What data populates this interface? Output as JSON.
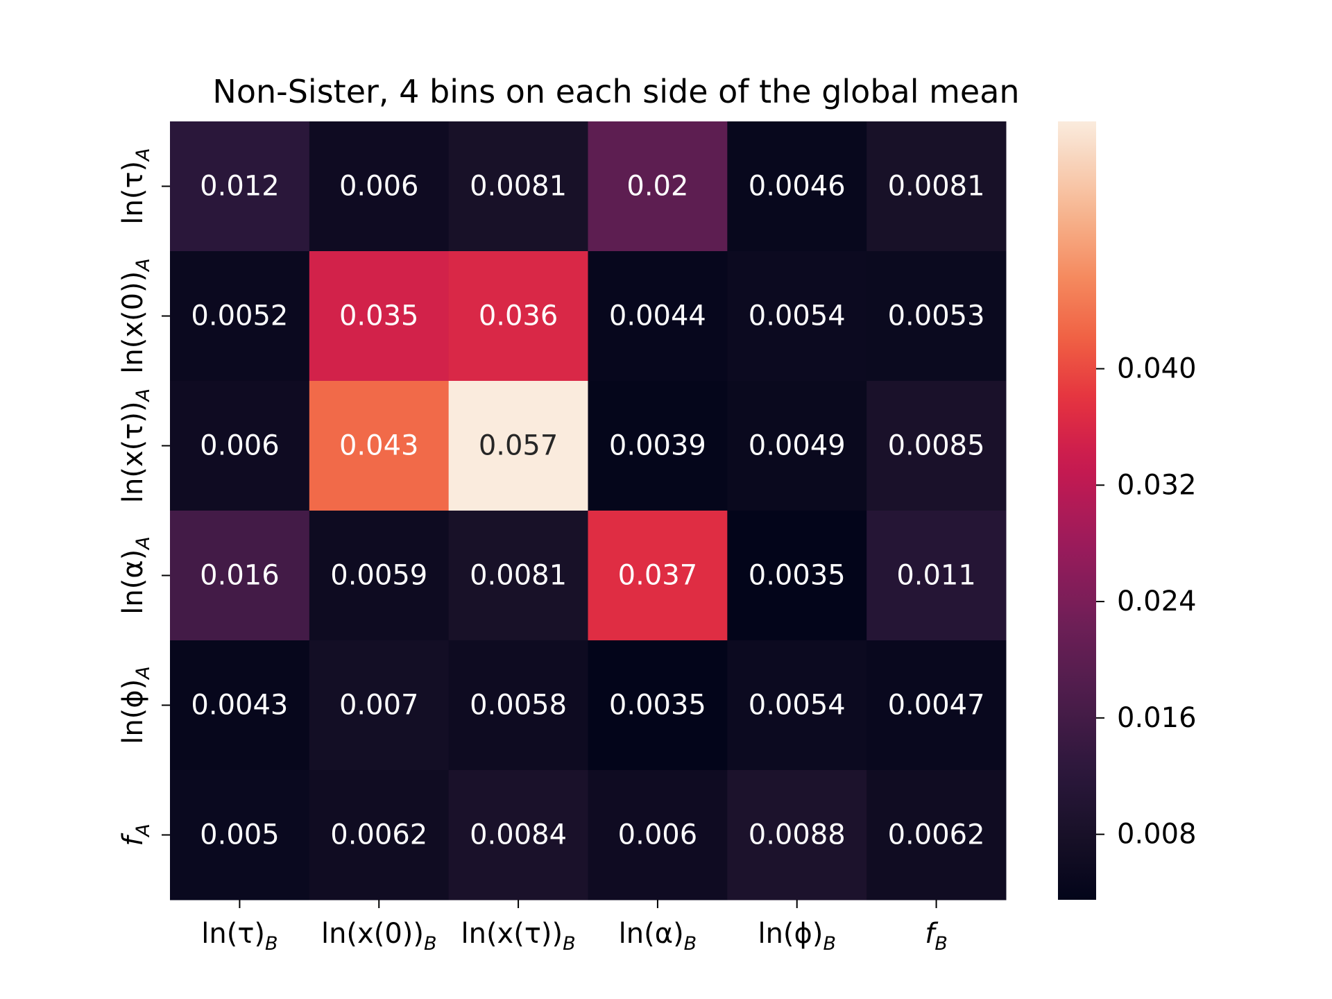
{
  "chart_data": {
    "type": "heatmap",
    "title": "Non-Sister, 4 bins on each side of the global mean",
    "xlabel": "",
    "ylabel": "",
    "x_tick_labels": [
      {
        "main": "ln(τ)",
        "sub": "B"
      },
      {
        "main": "ln(x(0))",
        "sub": "B"
      },
      {
        "main": "ln(x(τ))",
        "sub": "B"
      },
      {
        "main": "ln(α)",
        "sub": "B"
      },
      {
        "main": "ln(ϕ)",
        "sub": "B"
      },
      {
        "main": "f",
        "sub": "B"
      }
    ],
    "y_tick_labels": [
      {
        "main": "ln(τ)",
        "sub": "A"
      },
      {
        "main": "ln(x(0))",
        "sub": "A"
      },
      {
        "main": "ln(x(τ))",
        "sub": "A"
      },
      {
        "main": "ln(α)",
        "sub": "A"
      },
      {
        "main": "ln(ϕ)",
        "sub": "A"
      },
      {
        "main": "f",
        "sub": "A"
      }
    ],
    "values": [
      [
        0.012,
        0.006,
        0.0081,
        0.02,
        0.0046,
        0.0081
      ],
      [
        0.0052,
        0.035,
        0.036,
        0.0044,
        0.0054,
        0.0053
      ],
      [
        0.006,
        0.043,
        0.057,
        0.0039,
        0.0049,
        0.0085
      ],
      [
        0.016,
        0.0059,
        0.0081,
        0.037,
        0.0035,
        0.011
      ],
      [
        0.0043,
        0.007,
        0.0058,
        0.0035,
        0.0054,
        0.0047
      ],
      [
        0.005,
        0.0062,
        0.0084,
        0.006,
        0.0088,
        0.0062
      ]
    ],
    "value_labels": [
      [
        "0.012",
        "0.006",
        "0.0081",
        "0.02",
        "0.0046",
        "0.0081"
      ],
      [
        "0.0052",
        "0.035",
        "0.036",
        "0.0044",
        "0.0054",
        "0.0053"
      ],
      [
        "0.006",
        "0.043",
        "0.057",
        "0.0039",
        "0.0049",
        "0.0085"
      ],
      [
        "0.016",
        "0.0059",
        "0.0081",
        "0.037",
        "0.0035",
        "0.011"
      ],
      [
        "0.0043",
        "0.007",
        "0.0058",
        "0.0035",
        "0.0054",
        "0.0047"
      ],
      [
        "0.005",
        "0.0062",
        "0.0084",
        "0.006",
        "0.0088",
        "0.0062"
      ]
    ],
    "colormap": "rocket",
    "colorbar": {
      "range": [
        0.0035,
        0.057
      ],
      "tick_values": [
        0.008,
        0.016,
        0.024,
        0.032,
        0.04
      ],
      "tick_labels": [
        "0.008",
        "0.016",
        "0.024",
        "0.032",
        "0.040"
      ]
    },
    "colors": {
      "text_light": "#ffffff",
      "text_dark": "#262626"
    }
  }
}
